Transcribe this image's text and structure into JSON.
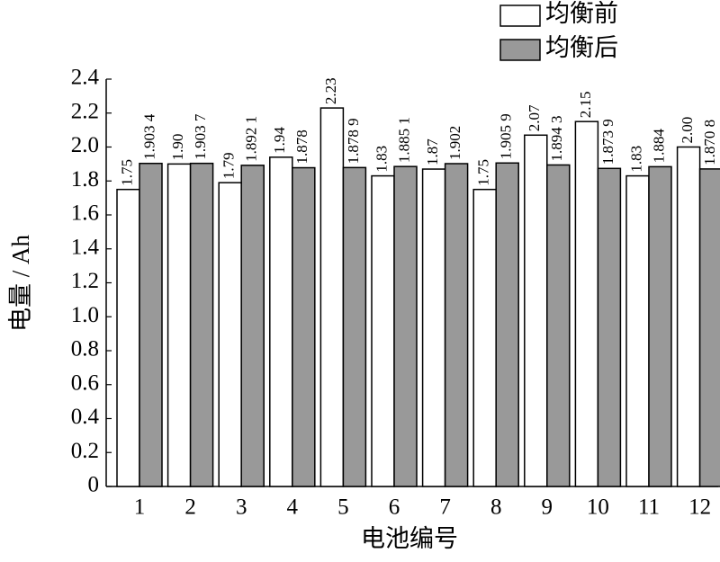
{
  "chart_data": {
    "type": "bar",
    "x_label": "电池编号",
    "y_label": "电量 / Ah",
    "categories": [
      "1",
      "2",
      "3",
      "4",
      "5",
      "6",
      "7",
      "8",
      "9",
      "10",
      "11",
      "12"
    ],
    "series": [
      {
        "name": "均衡前",
        "color": "#ffffff",
        "values": [
          1.75,
          1.9,
          1.79,
          1.94,
          2.23,
          1.83,
          1.87,
          1.75,
          2.07,
          2.15,
          1.83,
          2.0
        ],
        "value_labels": [
          "1.75",
          "1.90",
          "1.79",
          "1.94",
          "2.23",
          "1.83",
          "1.87",
          "1.75",
          "2.07",
          "2.15",
          "1.83",
          "2.00"
        ]
      },
      {
        "name": "均衡后",
        "color": "#999999",
        "values": [
          1.9034,
          1.9037,
          1.8921,
          1.878,
          1.8789,
          1.8851,
          1.902,
          1.9059,
          1.8943,
          1.8739,
          1.884,
          1.8708
        ],
        "value_labels": [
          "1.903 4",
          "1.903 7",
          "1.892 1",
          "1.878",
          "1.878 9",
          "1.885 1",
          "1.902",
          "1.905 9",
          "1.894 3",
          "1.873 9",
          "1.884",
          "1.870 8"
        ]
      }
    ],
    "ylim": [
      0,
      2.4
    ],
    "yticks": [
      0,
      0.2,
      0.4,
      0.6,
      0.8,
      {
        "value": 1,
        "label": "1.0"
      },
      1.2,
      1.4,
      1.6,
      1.8,
      {
        "value": 2,
        "label": "2.0"
      },
      2.2,
      2.4
    ],
    "legend": "upper right"
  }
}
